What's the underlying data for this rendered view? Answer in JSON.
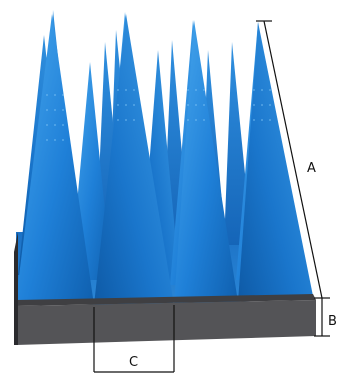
{
  "labels": {
    "a": "A",
    "b": "B",
    "c": "C"
  },
  "colors": {
    "cone_light": "#3a9be6",
    "cone_mid": "#1f7fd6",
    "cone_dark": "#1163b8",
    "base_top": "#3f3f42",
    "base_front": "#545457",
    "base_right": "#2b2b2e",
    "dimension_line": "#111111"
  }
}
